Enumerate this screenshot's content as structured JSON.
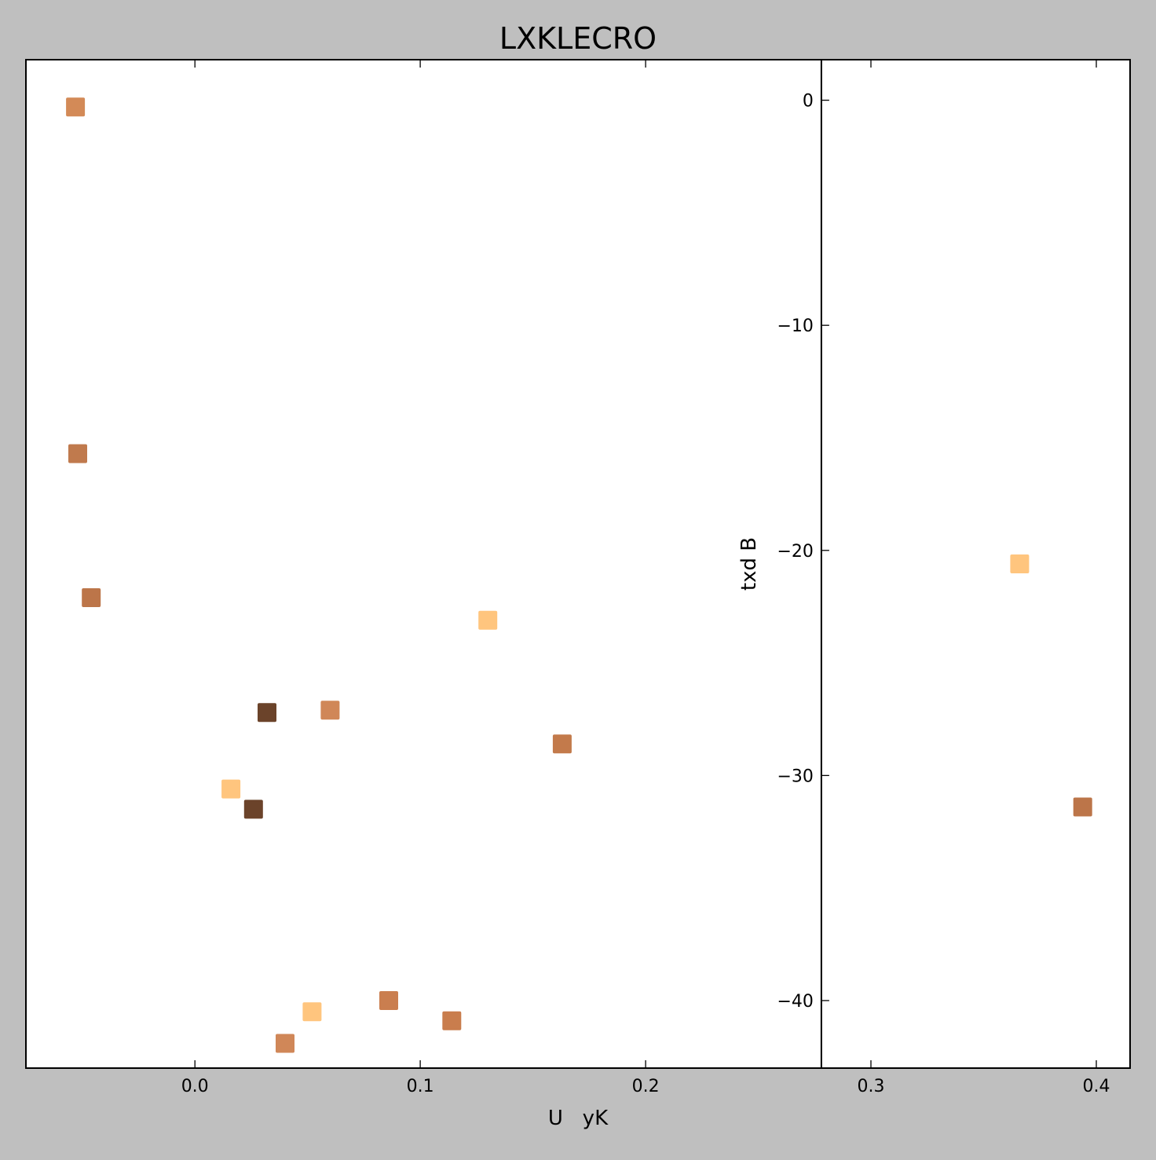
{
  "page": {
    "background": "#bfbfbf",
    "plot_background": "#ffffff"
  },
  "chart_data": {
    "type": "scatter",
    "title": "LXKLECRO",
    "xlabel": "U   yK",
    "ylabel": "txd B",
    "xlim": [
      -0.075,
      0.415
    ],
    "ylim": [
      -43.0,
      1.8
    ],
    "xticks": [
      0.0,
      0.1,
      0.2,
      0.3,
      0.4
    ],
    "xtick_labels": [
      "0.0",
      "0.1",
      "0.2",
      "0.3",
      "0.4"
    ],
    "yticks": [
      0,
      -10,
      -20,
      -30,
      -40
    ],
    "ytick_labels": [
      "0",
      "−10",
      "−20",
      "−30",
      "−40"
    ],
    "y_axis_position_x": 0.278,
    "grid": false,
    "marker": "square",
    "points": [
      {
        "x": -0.053,
        "y": -0.3,
        "color": "#d38a57"
      },
      {
        "x": -0.052,
        "y": -15.7,
        "color": "#c07a4d"
      },
      {
        "x": -0.046,
        "y": -22.1,
        "color": "#bc7549"
      },
      {
        "x": 0.016,
        "y": -30.6,
        "color": "#ffc57e"
      },
      {
        "x": 0.026,
        "y": -31.5,
        "color": "#6b432a"
      },
      {
        "x": 0.032,
        "y": -27.2,
        "color": "#6b432a"
      },
      {
        "x": 0.04,
        "y": -41.9,
        "color": "#d08758"
      },
      {
        "x": 0.052,
        "y": -40.5,
        "color": "#ffc57e"
      },
      {
        "x": 0.06,
        "y": -27.1,
        "color": "#d08758"
      },
      {
        "x": 0.086,
        "y": -40.0,
        "color": "#ca7e4f"
      },
      {
        "x": 0.114,
        "y": -40.9,
        "color": "#c97d4d"
      },
      {
        "x": 0.13,
        "y": -23.1,
        "color": "#ffc57e"
      },
      {
        "x": 0.163,
        "y": -28.6,
        "color": "#c37a4b"
      },
      {
        "x": 0.366,
        "y": -20.6,
        "color": "#ffc57e"
      },
      {
        "x": 0.394,
        "y": -31.4,
        "color": "#bc7549"
      }
    ]
  }
}
